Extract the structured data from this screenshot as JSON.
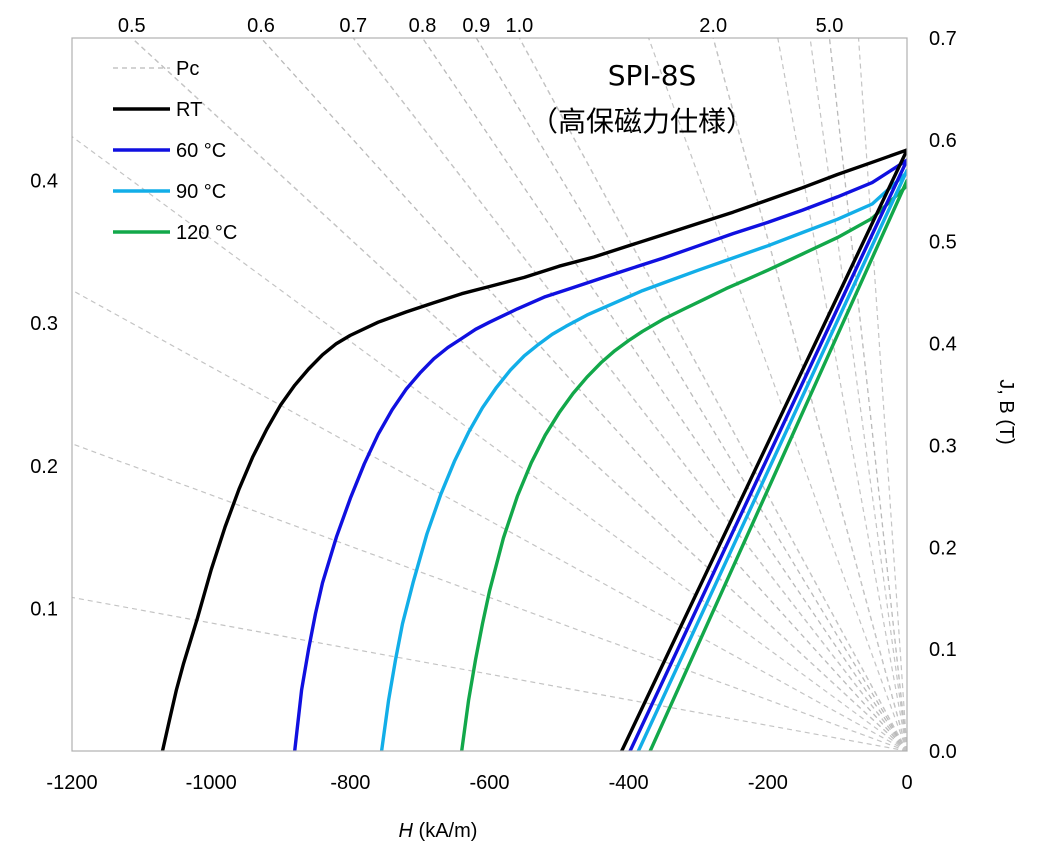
{
  "chart_data": {
    "type": "line",
    "title": "SPI-8S",
    "subtitle": "（高保磁力仕様）",
    "xlabel_italic": "H",
    "xlabel_rest": " (kA/m)",
    "ylabel_right": "J, B (T)",
    "xlim": [
      -1200,
      0
    ],
    "ylim_right": [
      0,
      0.7
    ],
    "x_ticks": [
      "-1200",
      "-1000",
      "-800",
      "-600",
      "-400",
      "-200",
      "0"
    ],
    "y_ticks_right": [
      "0.0",
      "0.1",
      "0.2",
      "0.3",
      "0.4",
      "0.5",
      "0.6",
      "0.7"
    ],
    "y_ticks_left": [
      "0.1",
      "0.2",
      "0.3",
      "0.4"
    ],
    "pc_values": [
      0.5,
      0.6,
      0.7,
      0.8,
      0.9,
      1.0,
      2.0,
      5.0
    ],
    "pc_top_labels": [
      "0.5",
      "0.6",
      "0.7",
      "0.8",
      "0.9",
      "1.0",
      "2.0",
      "5.0"
    ],
    "grid": false,
    "legend_position": "top-left",
    "legend": [
      "Pc",
      "RT",
      "60 °C",
      "90 °C",
      "120 °C"
    ],
    "series": [
      {
        "name": "RT",
        "color": "#000000",
        "kind": "J",
        "x": [
          -1070,
          -1060,
          -1050,
          -1040,
          -1020,
          -1000,
          -980,
          -960,
          -940,
          -920,
          -900,
          -880,
          -860,
          -840,
          -820,
          -800,
          -760,
          -720,
          -680,
          -640,
          -600,
          -550,
          -500,
          -450,
          -400,
          -350,
          -300,
          -250,
          -200,
          -150,
          -100,
          -50,
          0
        ],
        "y": [
          0.0,
          0.03,
          0.06,
          0.085,
          0.13,
          0.178,
          0.22,
          0.257,
          0.289,
          0.316,
          0.34,
          0.359,
          0.375,
          0.389,
          0.4,
          0.408,
          0.421,
          0.431,
          0.44,
          0.449,
          0.456,
          0.465,
          0.476,
          0.485,
          0.496,
          0.507,
          0.518,
          0.529,
          0.541,
          0.553,
          0.566,
          0.578,
          0.59
        ]
      },
      {
        "name": "60 °C",
        "color": "#1010e0",
        "kind": "J",
        "x": [
          -880,
          -870,
          -860,
          -850,
          -840,
          -820,
          -800,
          -780,
          -760,
          -740,
          -720,
          -700,
          -680,
          -660,
          -640,
          -620,
          -600,
          -560,
          -520,
          -480,
          -440,
          -400,
          -350,
          -300,
          -250,
          -200,
          -150,
          -100,
          -50,
          0
        ],
        "y": [
          0.0,
          0.06,
          0.1,
          0.135,
          0.165,
          0.21,
          0.248,
          0.282,
          0.311,
          0.335,
          0.355,
          0.371,
          0.385,
          0.396,
          0.405,
          0.414,
          0.421,
          0.434,
          0.446,
          0.455,
          0.464,
          0.473,
          0.484,
          0.496,
          0.508,
          0.519,
          0.531,
          0.544,
          0.558,
          0.58
        ]
      },
      {
        "name": "90 °C",
        "color": "#12aee8",
        "kind": "J",
        "x": [
          -755,
          -745,
          -735,
          -725,
          -710,
          -690,
          -670,
          -650,
          -630,
          -610,
          -590,
          -570,
          -550,
          -530,
          -510,
          -490,
          -460,
          -420,
          -380,
          -340,
          -300,
          -250,
          -200,
          -150,
          -100,
          -50,
          0
        ],
        "y": [
          0.0,
          0.05,
          0.09,
          0.125,
          0.165,
          0.213,
          0.252,
          0.285,
          0.313,
          0.337,
          0.357,
          0.374,
          0.388,
          0.399,
          0.409,
          0.417,
          0.428,
          0.44,
          0.452,
          0.462,
          0.472,
          0.484,
          0.496,
          0.509,
          0.522,
          0.537,
          0.568
        ]
      },
      {
        "name": "120 °C",
        "color": "#12a84a",
        "kind": "J",
        "x": [
          -640,
          -630,
          -620,
          -610,
          -600,
          -580,
          -560,
          -540,
          -520,
          -500,
          -480,
          -460,
          -440,
          -420,
          -400,
          -380,
          -350,
          -320,
          -290,
          -260,
          -230,
          -200,
          -150,
          -100,
          -50,
          0
        ],
        "y": [
          0.0,
          0.05,
          0.09,
          0.125,
          0.157,
          0.209,
          0.25,
          0.283,
          0.31,
          0.332,
          0.351,
          0.367,
          0.381,
          0.393,
          0.403,
          0.412,
          0.424,
          0.434,
          0.444,
          0.454,
          0.463,
          0.472,
          0.488,
          0.504,
          0.523,
          0.555
        ]
      },
      {
        "name": "RT",
        "color": "#000000",
        "kind": "B",
        "x": [
          -410,
          0
        ],
        "y": [
          0.0,
          0.59
        ]
      },
      {
        "name": "60 °C",
        "color": "#1010e0",
        "kind": "B",
        "x": [
          -398,
          0
        ],
        "y": [
          0.0,
          0.58
        ]
      },
      {
        "name": "90 °C",
        "color": "#12aee8",
        "kind": "B",
        "x": [
          -386,
          0
        ],
        "y": [
          0.0,
          0.57
        ]
      },
      {
        "name": "120 °C",
        "color": "#12a84a",
        "kind": "B",
        "x": [
          -369,
          0
        ],
        "y": [
          0.0,
          0.56
        ]
      }
    ]
  }
}
